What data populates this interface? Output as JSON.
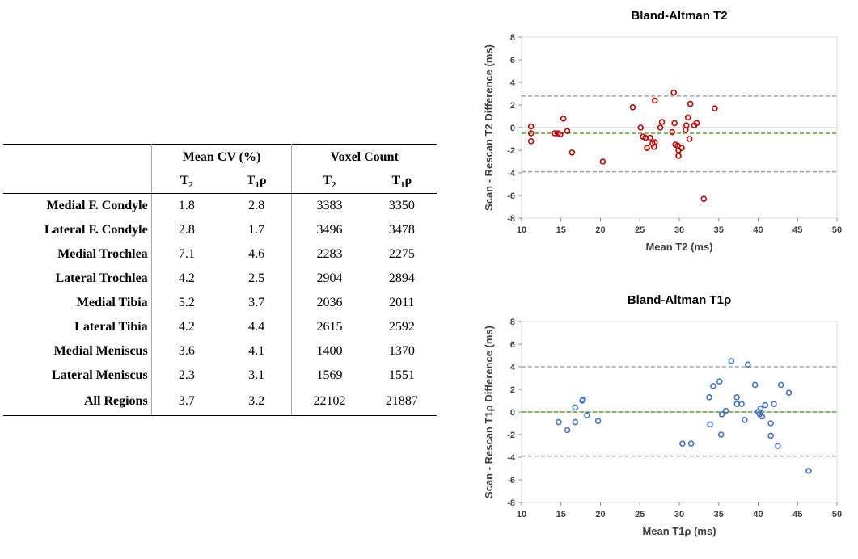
{
  "table": {
    "group_headers": [
      "Mean CV (%)",
      "Voxel Count"
    ],
    "sub_headers": [
      {
        "base": "T",
        "sub": "2",
        "suffix": ""
      },
      {
        "base": "T",
        "sub": "1",
        "suffix": "ρ"
      },
      {
        "base": "T",
        "sub": "2",
        "suffix": ""
      },
      {
        "base": "T",
        "sub": "1",
        "suffix": "ρ"
      }
    ],
    "rows": [
      {
        "region": "Medial F. Condyle",
        "cv_t2": "1.8",
        "cv_t1rho": "2.8",
        "vc_t2": "3383",
        "vc_t1rho": "3350"
      },
      {
        "region": "Lateral F. Condyle",
        "cv_t2": "2.8",
        "cv_t1rho": "1.7",
        "vc_t2": "3496",
        "vc_t1rho": "3478"
      },
      {
        "region": "Medial Trochlea",
        "cv_t2": "7.1",
        "cv_t1rho": "4.6",
        "vc_t2": "2283",
        "vc_t1rho": "2275"
      },
      {
        "region": "Lateral Trochlea",
        "cv_t2": "4.2",
        "cv_t1rho": "2.5",
        "vc_t2": "2904",
        "vc_t1rho": "2894"
      },
      {
        "region": "Medial Tibia",
        "cv_t2": "5.2",
        "cv_t1rho": "3.7",
        "vc_t2": "2036",
        "vc_t1rho": "2011"
      },
      {
        "region": "Lateral Tibia",
        "cv_t2": "4.2",
        "cv_t1rho": "4.4",
        "vc_t2": "2615",
        "vc_t1rho": "2592"
      },
      {
        "region": "Medial Meniscus",
        "cv_t2": "3.6",
        "cv_t1rho": "4.1",
        "vc_t2": "1400",
        "vc_t1rho": "1370"
      },
      {
        "region": "Lateral Meniscus",
        "cv_t2": "2.3",
        "cv_t1rho": "3.1",
        "vc_t2": "1569",
        "vc_t1rho": "1551"
      },
      {
        "region": "All Regions",
        "cv_t2": "3.7",
        "cv_t1rho": "3.2",
        "vc_t2": "22102",
        "vc_t1rho": "21887"
      }
    ]
  },
  "chart_data": [
    {
      "type": "scatter",
      "title": "Bland-Altman T2",
      "xlabel": "Mean T2 (ms)",
      "ylabel": "Scan - Rescan T2 Difference (ms)",
      "xlim": [
        10,
        50
      ],
      "ylim": [
        -8,
        8
      ],
      "xticks": [
        10,
        15,
        20,
        25,
        30,
        35,
        40,
        45,
        50
      ],
      "yticks": [
        -8,
        -6,
        -4,
        -2,
        0,
        2,
        4,
        6,
        8
      ],
      "marker_color": "#c00000",
      "mean_line": {
        "y": -0.5,
        "color": "#5aa02c"
      },
      "limit_lines": {
        "values": [
          2.8,
          -3.9
        ],
        "color": "#a6a6a6"
      },
      "points": [
        [
          11.2,
          0.1
        ],
        [
          11.2,
          -0.5
        ],
        [
          11.2,
          -1.2
        ],
        [
          14.2,
          -0.5
        ],
        [
          14.6,
          -0.5
        ],
        [
          14.9,
          -0.6
        ],
        [
          15.3,
          0.8
        ],
        [
          15.8,
          -0.3
        ],
        [
          16.4,
          -2.2
        ],
        [
          20.3,
          -3.0
        ],
        [
          24.1,
          1.8
        ],
        [
          25.1,
          0.0
        ],
        [
          25.4,
          -0.8
        ],
        [
          25.7,
          -0.9
        ],
        [
          25.9,
          -1.8
        ],
        [
          26.3,
          -0.9
        ],
        [
          26.6,
          -1.4
        ],
        [
          26.8,
          -1.7
        ],
        [
          26.9,
          -1.3
        ],
        [
          26.9,
          2.4
        ],
        [
          27.6,
          0.0
        ],
        [
          27.8,
          0.5
        ],
        [
          29.1,
          -0.4
        ],
        [
          29.3,
          3.1
        ],
        [
          29.4,
          0.4
        ],
        [
          29.5,
          -1.5
        ],
        [
          29.8,
          -1.6
        ],
        [
          29.9,
          -2.5
        ],
        [
          29.9,
          -2.0
        ],
        [
          30.3,
          -1.8
        ],
        [
          30.8,
          -0.2
        ],
        [
          30.9,
          0.2
        ],
        [
          31.1,
          0.9
        ],
        [
          31.3,
          -1.0
        ],
        [
          31.4,
          2.1
        ],
        [
          31.9,
          0.2
        ],
        [
          32.2,
          0.4
        ],
        [
          33.1,
          -6.3
        ],
        [
          34.5,
          1.7
        ]
      ]
    },
    {
      "type": "scatter",
      "title": "Bland-Altman T1ρ",
      "xlabel": "Mean T1ρ (ms)",
      "ylabel": "Scan - Rescan T1ρ Difference (ms)",
      "xlim": [
        10,
        50
      ],
      "ylim": [
        -8,
        8
      ],
      "xticks": [
        10,
        15,
        20,
        25,
        30,
        35,
        40,
        45,
        50
      ],
      "yticks": [
        -8,
        -6,
        -4,
        -2,
        0,
        2,
        4,
        6,
        8
      ],
      "marker_color": "#4472c4",
      "mean_line": {
        "y": 0.0,
        "color": "#5aa02c"
      },
      "limit_lines": {
        "values": [
          4.0,
          -3.9
        ],
        "color": "#a6a6a6"
      },
      "points": [
        [
          14.7,
          -0.9
        ],
        [
          15.8,
          -1.6
        ],
        [
          16.8,
          0.4
        ],
        [
          16.8,
          -0.9
        ],
        [
          17.7,
          1.0
        ],
        [
          17.8,
          1.1
        ],
        [
          18.3,
          -0.3
        ],
        [
          19.7,
          -0.8
        ],
        [
          30.4,
          -2.8
        ],
        [
          31.5,
          -2.8
        ],
        [
          33.8,
          1.3
        ],
        [
          33.9,
          -1.1
        ],
        [
          34.3,
          2.3
        ],
        [
          35.1,
          2.7
        ],
        [
          35.3,
          -2.0
        ],
        [
          35.4,
          -0.2
        ],
        [
          35.9,
          0.1
        ],
        [
          36.6,
          4.5
        ],
        [
          37.3,
          1.3
        ],
        [
          37.3,
          0.7
        ],
        [
          37.9,
          0.7
        ],
        [
          38.3,
          -0.7
        ],
        [
          38.7,
          4.2
        ],
        [
          39.6,
          2.4
        ],
        [
          40.0,
          0.0
        ],
        [
          40.2,
          -0.2
        ],
        [
          40.3,
          0.3
        ],
        [
          40.5,
          -0.4
        ],
        [
          40.9,
          0.6
        ],
        [
          41.6,
          -1.0
        ],
        [
          41.6,
          -2.1
        ],
        [
          42.0,
          0.7
        ],
        [
          42.5,
          -3.0
        ],
        [
          42.9,
          2.4
        ],
        [
          43.9,
          1.7
        ],
        [
          46.4,
          -5.2
        ]
      ]
    }
  ]
}
